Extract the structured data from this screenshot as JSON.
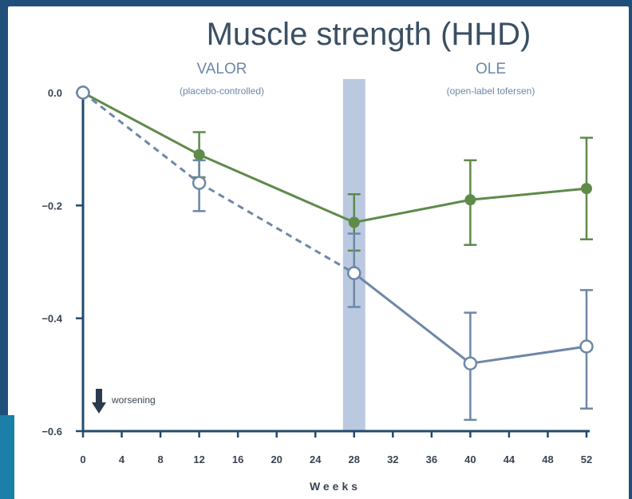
{
  "chart_data": {
    "type": "line",
    "title": "Muscle strength (HHD)",
    "xlabel": "Weeks",
    "ylabel": "",
    "x_ticks": [
      0,
      4,
      8,
      12,
      16,
      20,
      24,
      28,
      32,
      36,
      40,
      44,
      48,
      52
    ],
    "y_ticks": [
      0.0,
      -0.2,
      -0.4,
      -0.6
    ],
    "y_tick_labels": [
      "0.0",
      "−0.2",
      "−0.4",
      "−0.6"
    ],
    "xlim": [
      0,
      52
    ],
    "ylim": [
      -0.6,
      0.0
    ],
    "sections": [
      {
        "title": "VALOR",
        "subtitle": "(placebo-controlled)"
      },
      {
        "title": "OLE",
        "subtitle": "(open-label tofersen)"
      }
    ],
    "highlight_band_x": 28,
    "annotation": "worsening",
    "series": [
      {
        "color": "#5f8a4a",
        "marker": "filled",
        "points": [
          {
            "x": 0,
            "y": 0.0,
            "lo": null,
            "hi": null
          },
          {
            "x": 12,
            "y": -0.11,
            "lo": -0.15,
            "hi": -0.07
          },
          {
            "x": 28,
            "y": -0.23,
            "lo": -0.28,
            "hi": -0.18
          },
          {
            "x": 40,
            "y": -0.19,
            "lo": -0.27,
            "hi": -0.12
          },
          {
            "x": 52,
            "y": -0.17,
            "lo": -0.26,
            "hi": -0.08
          }
        ]
      },
      {
        "color": "#6d87a8",
        "marker": "open",
        "dashed_until_x": 28,
        "points": [
          {
            "x": 0,
            "y": 0.0,
            "lo": null,
            "hi": null
          },
          {
            "x": 12,
            "y": -0.16,
            "lo": -0.21,
            "hi": -0.12
          },
          {
            "x": 28,
            "y": -0.32,
            "lo": -0.38,
            "hi": -0.25
          },
          {
            "x": 40,
            "y": -0.48,
            "lo": -0.58,
            "hi": -0.39
          },
          {
            "x": 52,
            "y": -0.45,
            "lo": -0.56,
            "hi": -0.35
          }
        ]
      }
    ]
  }
}
